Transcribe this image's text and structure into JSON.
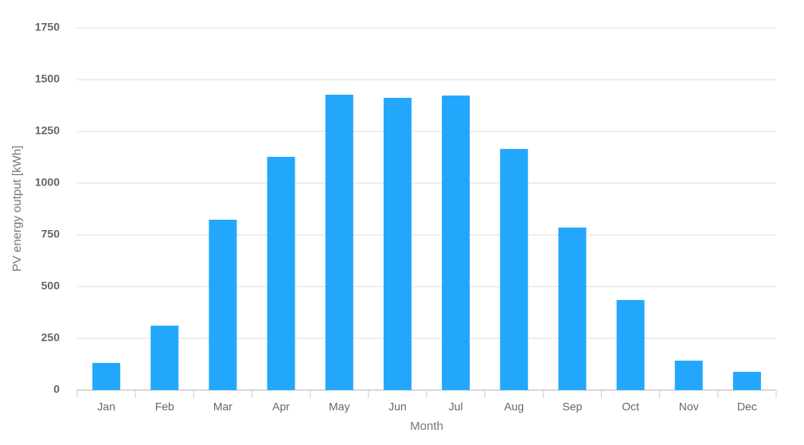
{
  "chart_data": {
    "type": "bar",
    "x_label": "Month",
    "y_label": "PV energy output [kWh]",
    "categories": [
      "Jan",
      "Feb",
      "Mar",
      "Apr",
      "May",
      "Jun",
      "Jul",
      "Aug",
      "Sep",
      "Oct",
      "Nov",
      "Dec"
    ],
    "values": [
      131,
      311,
      823,
      1127,
      1427,
      1412,
      1423,
      1165,
      785,
      435,
      142,
      88
    ],
    "color": "#22a7fc",
    "ylim": [
      0,
      1750
    ],
    "yticks": [
      0,
      250,
      500,
      750,
      1000,
      1250,
      1500,
      1750
    ],
    "grid": true
  }
}
